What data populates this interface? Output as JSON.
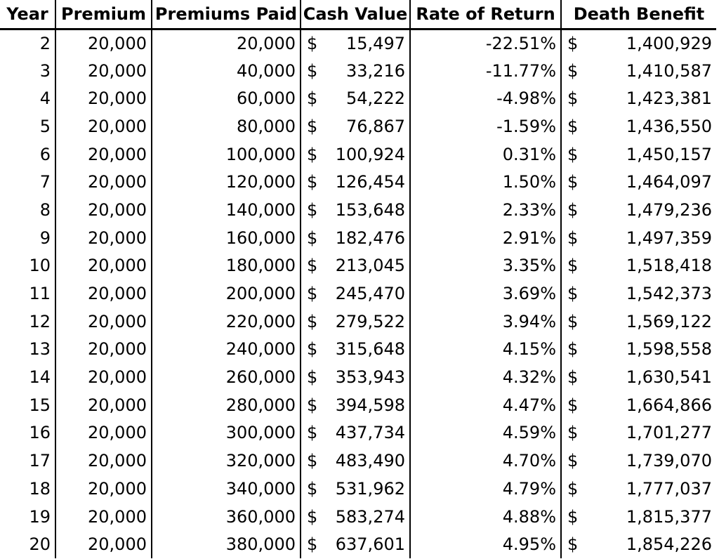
{
  "table": {
    "headers": [
      "Year",
      "Premium",
      "Premiums Paid",
      "Cash Value",
      "Rate of Return",
      "Death Benefit"
    ],
    "currency_symbol": "$",
    "rows": [
      {
        "year": "2",
        "premium": "20,000",
        "paid": "20,000",
        "cash": "15,497",
        "ror": "-22.51%",
        "db": "1,400,929"
      },
      {
        "year": "3",
        "premium": "20,000",
        "paid": "40,000",
        "cash": "33,216",
        "ror": "-11.77%",
        "db": "1,410,587"
      },
      {
        "year": "4",
        "premium": "20,000",
        "paid": "60,000",
        "cash": "54,222",
        "ror": "-4.98%",
        "db": "1,423,381"
      },
      {
        "year": "5",
        "premium": "20,000",
        "paid": "80,000",
        "cash": "76,867",
        "ror": "-1.59%",
        "db": "1,436,550"
      },
      {
        "year": "6",
        "premium": "20,000",
        "paid": "100,000",
        "cash": "100,924",
        "ror": "0.31%",
        "db": "1,450,157"
      },
      {
        "year": "7",
        "premium": "20,000",
        "paid": "120,000",
        "cash": "126,454",
        "ror": "1.50%",
        "db": "1,464,097"
      },
      {
        "year": "8",
        "premium": "20,000",
        "paid": "140,000",
        "cash": "153,648",
        "ror": "2.33%",
        "db": "1,479,236"
      },
      {
        "year": "9",
        "premium": "20,000",
        "paid": "160,000",
        "cash": "182,476",
        "ror": "2.91%",
        "db": "1,497,359"
      },
      {
        "year": "10",
        "premium": "20,000",
        "paid": "180,000",
        "cash": "213,045",
        "ror": "3.35%",
        "db": "1,518,418"
      },
      {
        "year": "11",
        "premium": "20,000",
        "paid": "200,000",
        "cash": "245,470",
        "ror": "3.69%",
        "db": "1,542,373"
      },
      {
        "year": "12",
        "premium": "20,000",
        "paid": "220,000",
        "cash": "279,522",
        "ror": "3.94%",
        "db": "1,569,122"
      },
      {
        "year": "13",
        "premium": "20,000",
        "paid": "240,000",
        "cash": "315,648",
        "ror": "4.15%",
        "db": "1,598,558"
      },
      {
        "year": "14",
        "premium": "20,000",
        "paid": "260,000",
        "cash": "353,943",
        "ror": "4.32%",
        "db": "1,630,541"
      },
      {
        "year": "15",
        "premium": "20,000",
        "paid": "280,000",
        "cash": "394,598",
        "ror": "4.47%",
        "db": "1,664,866"
      },
      {
        "year": "16",
        "premium": "20,000",
        "paid": "300,000",
        "cash": "437,734",
        "ror": "4.59%",
        "db": "1,701,277"
      },
      {
        "year": "17",
        "premium": "20,000",
        "paid": "320,000",
        "cash": "483,490",
        "ror": "4.70%",
        "db": "1,739,070"
      },
      {
        "year": "18",
        "premium": "20,000",
        "paid": "340,000",
        "cash": "531,962",
        "ror": "4.79%",
        "db": "1,777,037"
      },
      {
        "year": "19",
        "premium": "20,000",
        "paid": "360,000",
        "cash": "583,274",
        "ror": "4.88%",
        "db": "1,815,377"
      },
      {
        "year": "20",
        "premium": "20,000",
        "paid": "380,000",
        "cash": "637,601",
        "ror": "4.95%",
        "db": "1,854,226"
      }
    ]
  }
}
